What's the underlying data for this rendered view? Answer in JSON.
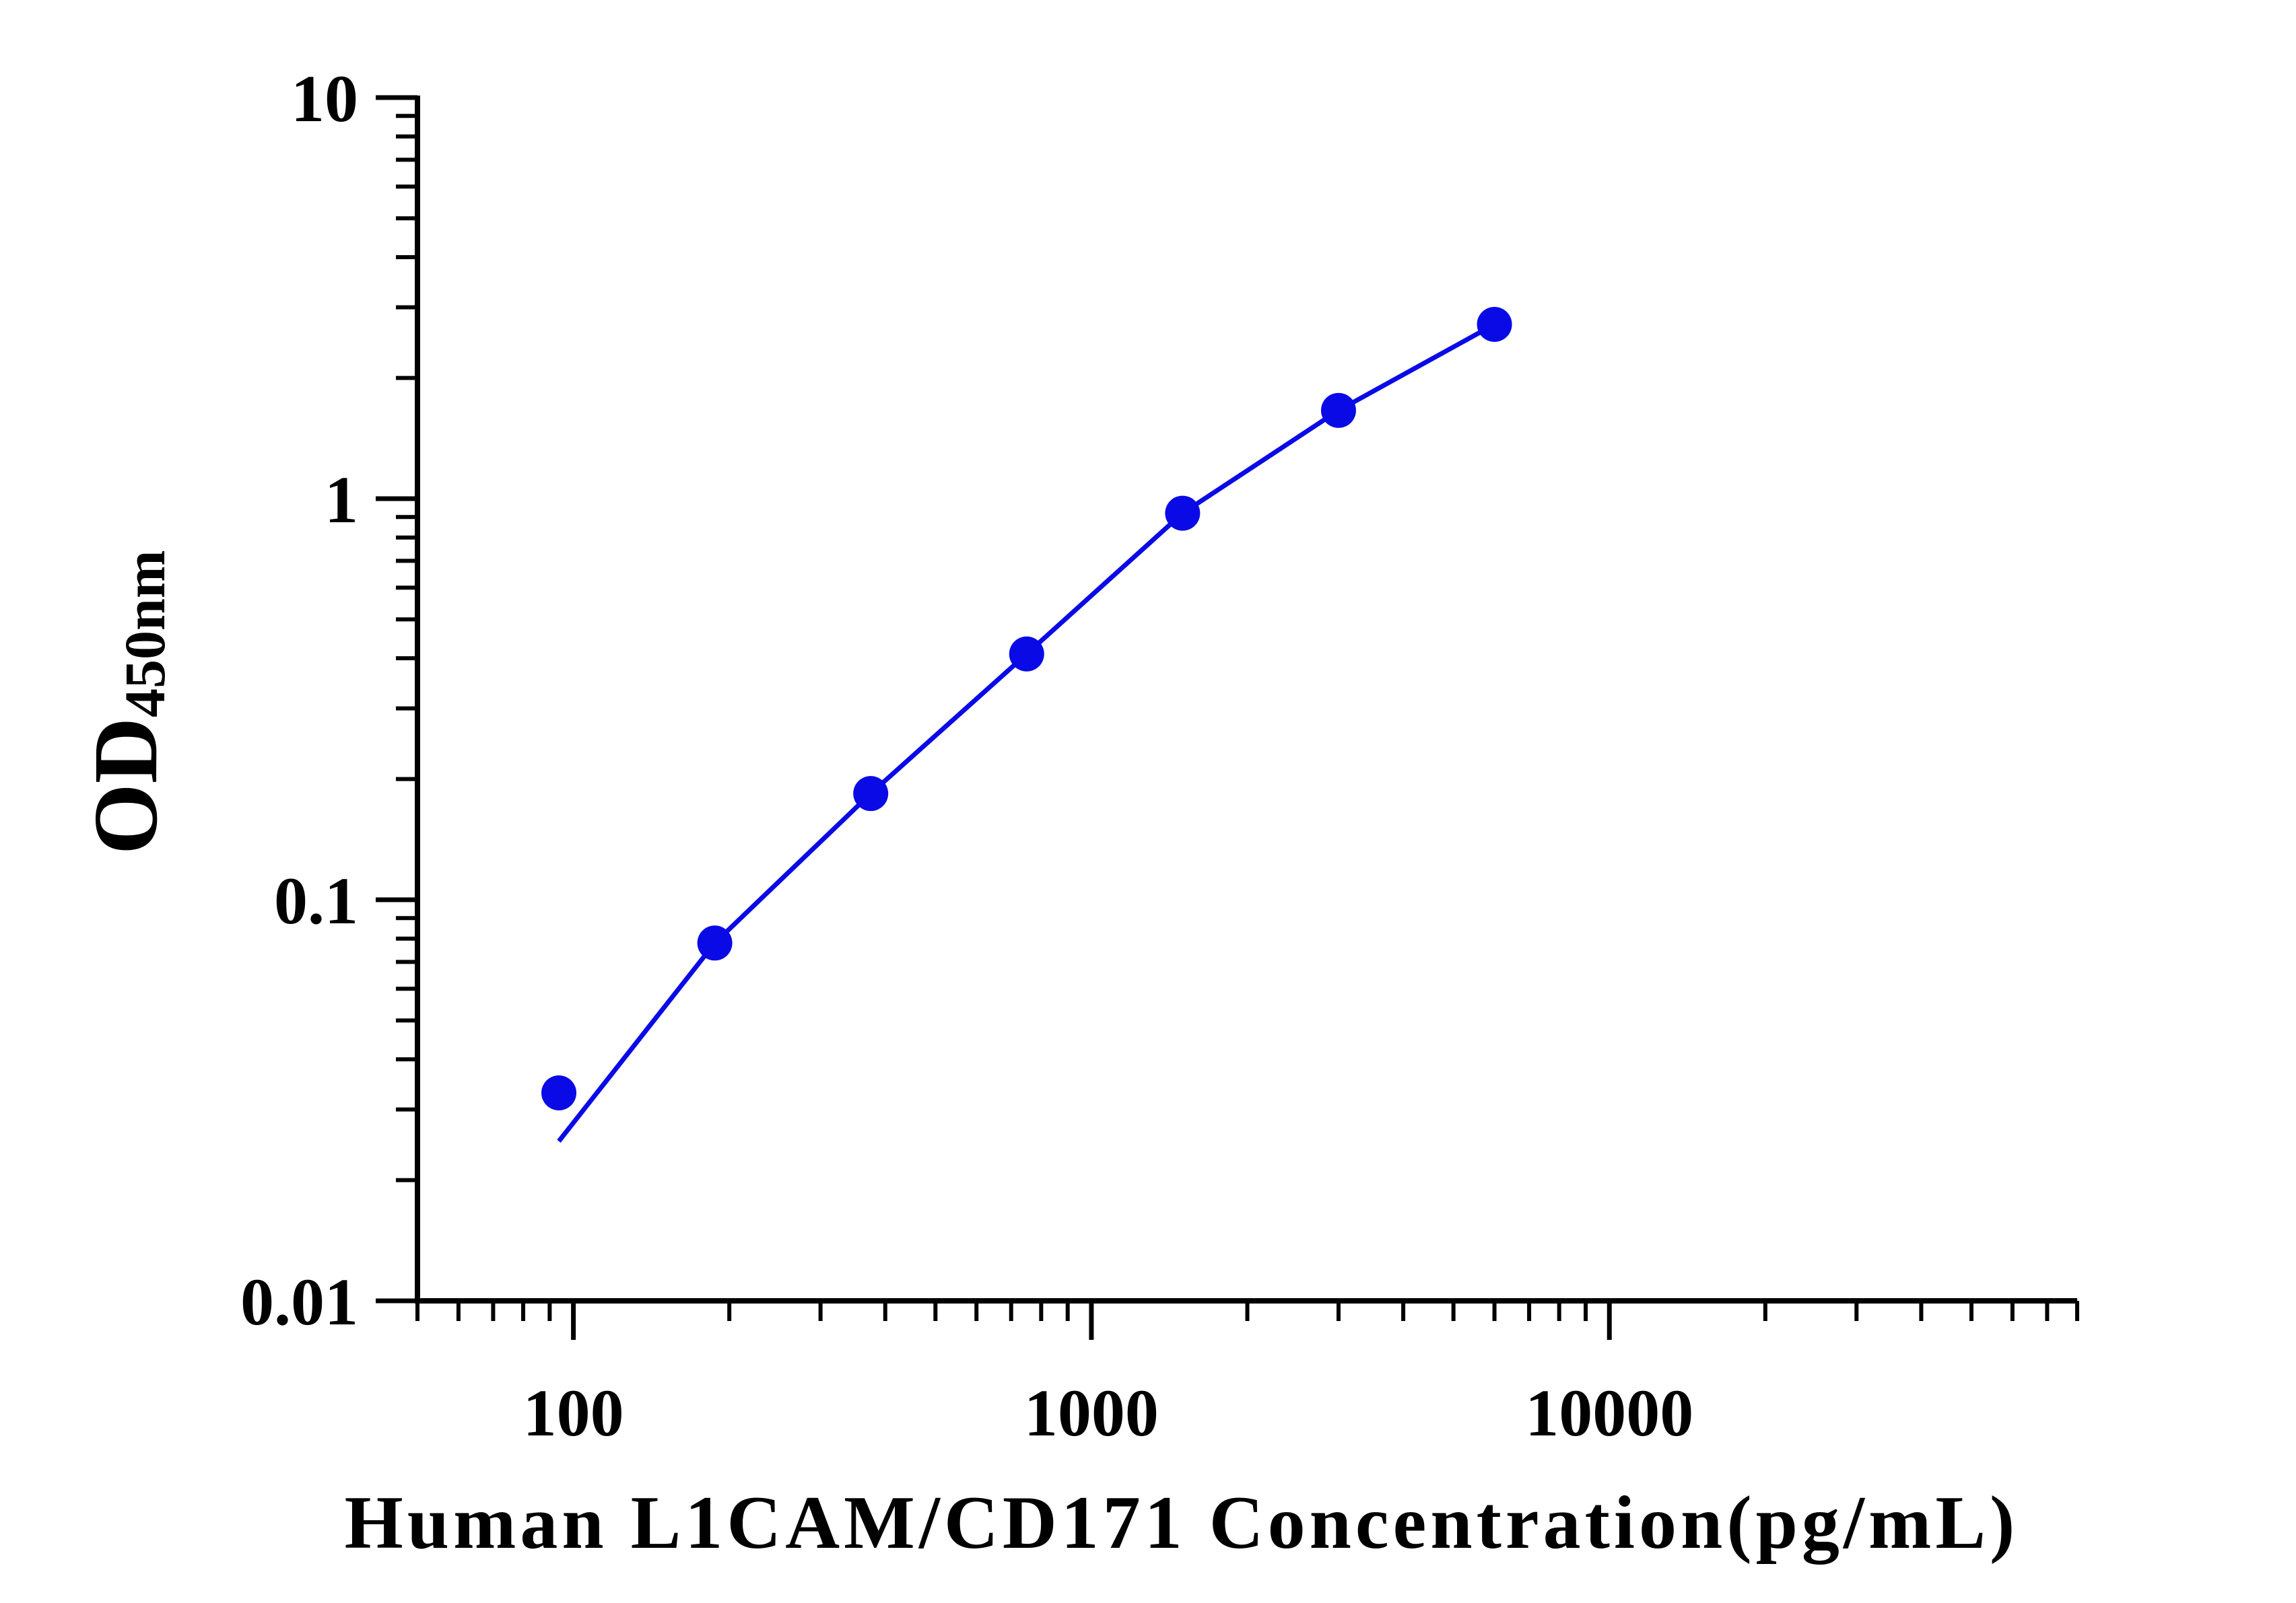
{
  "chart_data": {
    "type": "scatter",
    "title": "",
    "xlabel": "Human L1CAM/CD171 Concentration(pg/mL)",
    "ylabel_main": "OD",
    "ylabel_sub": "450nm",
    "x_scale": "log",
    "y_scale": "log",
    "xlim": [
      50,
      80000
    ],
    "ylim": [
      0.01,
      10
    ],
    "x_tick_labels": [
      "100",
      "1000",
      "10000"
    ],
    "y_tick_labels": [
      "10",
      "1",
      "0.1",
      "0.01"
    ],
    "grid": false,
    "legend": "none",
    "colors": {
      "series": "#0a0ae6",
      "axis": "#000000"
    },
    "series": [
      {
        "x": [
          93.75,
          187.5,
          375,
          750,
          1500,
          3000,
          6000
        ],
        "y": [
          0.033,
          0.078,
          0.184,
          0.41,
          0.92,
          1.66,
          2.72
        ]
      }
    ],
    "fit_curve": {
      "x": [
        93.75,
        187.5,
        375,
        750,
        1500,
        3000,
        6000
      ],
      "y": [
        0.025,
        0.078,
        0.184,
        0.41,
        0.92,
        1.66,
        2.72
      ]
    }
  }
}
